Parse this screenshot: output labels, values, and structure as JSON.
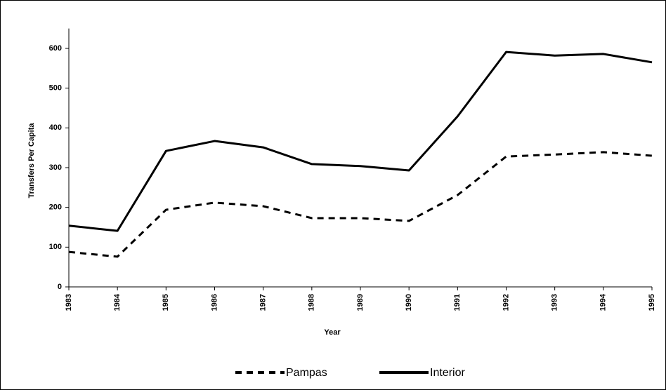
{
  "chart_data": {
    "type": "line",
    "x_label": "Year",
    "y_label": "Transfers Per Capita",
    "categories": [
      "1983",
      "1984",
      "1985",
      "1986",
      "1987",
      "1988",
      "1989",
      "1990",
      "1991",
      "1992",
      "1993",
      "1994",
      "1995"
    ],
    "series": [
      {
        "name": "Pampas",
        "color": "#000000",
        "dash": true,
        "values": [
          88,
          76,
          194,
          212,
          203,
          173,
          173,
          166,
          231,
          328,
          333,
          339,
          330
        ]
      },
      {
        "name": "Interior",
        "color": "#000000",
        "dash": false,
        "values": [
          154,
          141,
          342,
          367,
          351,
          309,
          304,
          293,
          429,
          591,
          582,
          586,
          565
        ]
      }
    ],
    "ylim": [
      0,
      650
    ],
    "yticks": [
      0,
      100,
      200,
      300,
      400,
      500,
      600
    ],
    "grid": false,
    "legend": "bottom"
  }
}
